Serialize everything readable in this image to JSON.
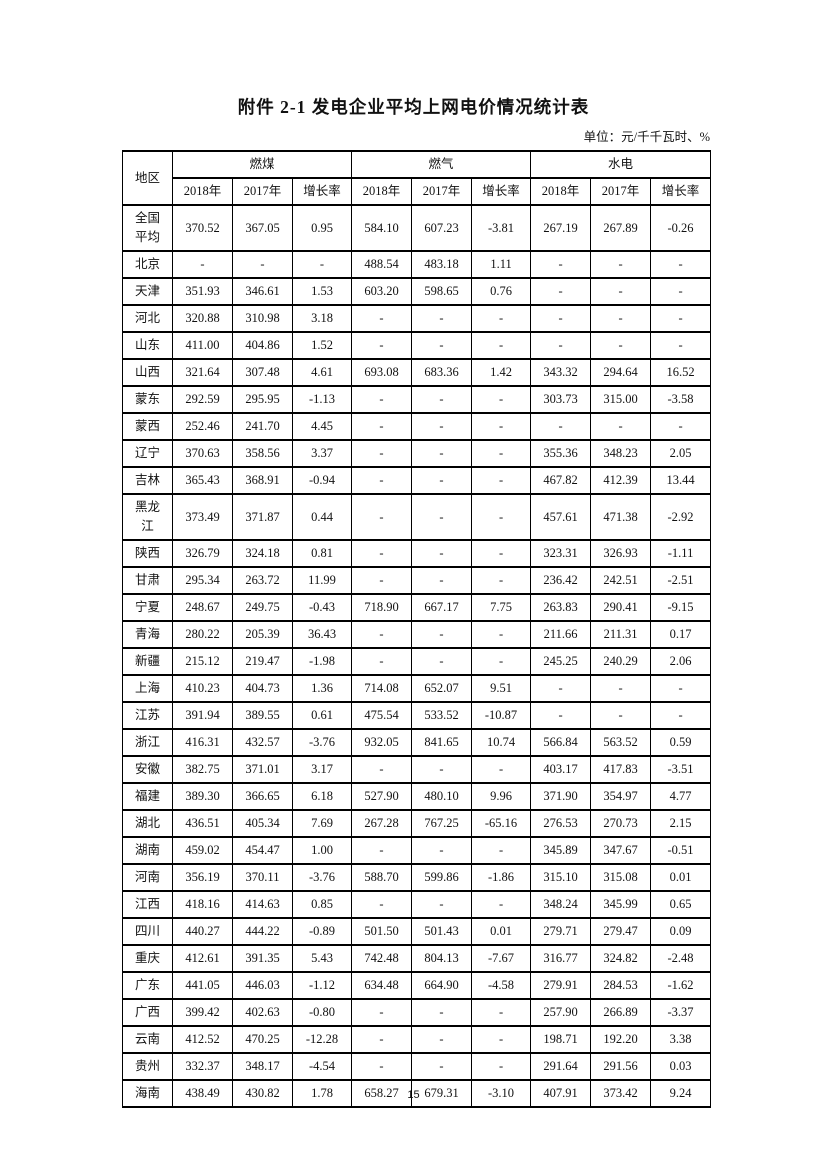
{
  "page": {
    "title": "附件 2-1 发电企业平均上网电价情况统计表",
    "unit_label": "单位：元/千千瓦时、%",
    "page_number": "15"
  },
  "table": {
    "region_header": "地区",
    "groups": [
      {
        "label": "燃煤",
        "columns": [
          "2018年",
          "2017年",
          "增长率"
        ]
      },
      {
        "label": "燃气",
        "columns": [
          "2018年",
          "2017年",
          "增长率"
        ]
      },
      {
        "label": "水电",
        "columns": [
          "2018年",
          "2017年",
          "增长率"
        ]
      }
    ],
    "rows": [
      {
        "region": "全国\n平均",
        "values": [
          "370.52",
          "367.05",
          "0.95",
          "584.10",
          "607.23",
          "-3.81",
          "267.19",
          "267.89",
          "-0.26"
        ]
      },
      {
        "region": "北京",
        "values": [
          "-",
          "-",
          "-",
          "488.54",
          "483.18",
          "1.11",
          "-",
          "-",
          "-"
        ]
      },
      {
        "region": "天津",
        "values": [
          "351.93",
          "346.61",
          "1.53",
          "603.20",
          "598.65",
          "0.76",
          "-",
          "-",
          "-"
        ]
      },
      {
        "region": "河北",
        "values": [
          "320.88",
          "310.98",
          "3.18",
          "-",
          "-",
          "-",
          "-",
          "-",
          "-"
        ]
      },
      {
        "region": "山东",
        "values": [
          "411.00",
          "404.86",
          "1.52",
          "-",
          "-",
          "-",
          "-",
          "-",
          "-"
        ]
      },
      {
        "region": "山西",
        "values": [
          "321.64",
          "307.48",
          "4.61",
          "693.08",
          "683.36",
          "1.42",
          "343.32",
          "294.64",
          "16.52"
        ]
      },
      {
        "region": "蒙东",
        "values": [
          "292.59",
          "295.95",
          "-1.13",
          "-",
          "-",
          "-",
          "303.73",
          "315.00",
          "-3.58"
        ]
      },
      {
        "region": "蒙西",
        "values": [
          "252.46",
          "241.70",
          "4.45",
          "-",
          "-",
          "-",
          "-",
          "-",
          "-"
        ]
      },
      {
        "region": "辽宁",
        "values": [
          "370.63",
          "358.56",
          "3.37",
          "-",
          "-",
          "-",
          "355.36",
          "348.23",
          "2.05"
        ]
      },
      {
        "region": "吉林",
        "values": [
          "365.43",
          "368.91",
          "-0.94",
          "-",
          "-",
          "-",
          "467.82",
          "412.39",
          "13.44"
        ]
      },
      {
        "region": "黑龙\n江",
        "values": [
          "373.49",
          "371.87",
          "0.44",
          "-",
          "-",
          "-",
          "457.61",
          "471.38",
          "-2.92"
        ]
      },
      {
        "region": "陕西",
        "values": [
          "326.79",
          "324.18",
          "0.81",
          "-",
          "-",
          "-",
          "323.31",
          "326.93",
          "-1.11"
        ]
      },
      {
        "region": "甘肃",
        "values": [
          "295.34",
          "263.72",
          "11.99",
          "-",
          "-",
          "-",
          "236.42",
          "242.51",
          "-2.51"
        ]
      },
      {
        "region": "宁夏",
        "values": [
          "248.67",
          "249.75",
          "-0.43",
          "718.90",
          "667.17",
          "7.75",
          "263.83",
          "290.41",
          "-9.15"
        ]
      },
      {
        "region": "青海",
        "values": [
          "280.22",
          "205.39",
          "36.43",
          "-",
          "-",
          "-",
          "211.66",
          "211.31",
          "0.17"
        ]
      },
      {
        "region": "新疆",
        "values": [
          "215.12",
          "219.47",
          "-1.98",
          "-",
          "-",
          "-",
          "245.25",
          "240.29",
          "2.06"
        ]
      },
      {
        "region": "上海",
        "values": [
          "410.23",
          "404.73",
          "1.36",
          "714.08",
          "652.07",
          "9.51",
          "-",
          "-",
          "-"
        ]
      },
      {
        "region": "江苏",
        "values": [
          "391.94",
          "389.55",
          "0.61",
          "475.54",
          "533.52",
          "-10.87",
          "-",
          "-",
          "-"
        ]
      },
      {
        "region": "浙江",
        "values": [
          "416.31",
          "432.57",
          "-3.76",
          "932.05",
          "841.65",
          "10.74",
          "566.84",
          "563.52",
          "0.59"
        ]
      },
      {
        "region": "安徽",
        "values": [
          "382.75",
          "371.01",
          "3.17",
          "-",
          "-",
          "-",
          "403.17",
          "417.83",
          "-3.51"
        ]
      },
      {
        "region": "福建",
        "values": [
          "389.30",
          "366.65",
          "6.18",
          "527.90",
          "480.10",
          "9.96",
          "371.90",
          "354.97",
          "4.77"
        ]
      },
      {
        "region": "湖北",
        "values": [
          "436.51",
          "405.34",
          "7.69",
          "267.28",
          "767.25",
          "-65.16",
          "276.53",
          "270.73",
          "2.15"
        ]
      },
      {
        "region": "湖南",
        "values": [
          "459.02",
          "454.47",
          "1.00",
          "-",
          "-",
          "-",
          "345.89",
          "347.67",
          "-0.51"
        ]
      },
      {
        "region": "河南",
        "values": [
          "356.19",
          "370.11",
          "-3.76",
          "588.70",
          "599.86",
          "-1.86",
          "315.10",
          "315.08",
          "0.01"
        ]
      },
      {
        "region": "江西",
        "values": [
          "418.16",
          "414.63",
          "0.85",
          "-",
          "-",
          "-",
          "348.24",
          "345.99",
          "0.65"
        ]
      },
      {
        "region": "四川",
        "values": [
          "440.27",
          "444.22",
          "-0.89",
          "501.50",
          "501.43",
          "0.01",
          "279.71",
          "279.47",
          "0.09"
        ]
      },
      {
        "region": "重庆",
        "values": [
          "412.61",
          "391.35",
          "5.43",
          "742.48",
          "804.13",
          "-7.67",
          "316.77",
          "324.82",
          "-2.48"
        ]
      },
      {
        "region": "广东",
        "values": [
          "441.05",
          "446.03",
          "-1.12",
          "634.48",
          "664.90",
          "-4.58",
          "279.91",
          "284.53",
          "-1.62"
        ]
      },
      {
        "region": "广西",
        "values": [
          "399.42",
          "402.63",
          "-0.80",
          "-",
          "-",
          "-",
          "257.90",
          "266.89",
          "-3.37"
        ]
      },
      {
        "region": "云南",
        "values": [
          "412.52",
          "470.25",
          "-12.28",
          "-",
          "-",
          "-",
          "198.71",
          "192.20",
          "3.38"
        ]
      },
      {
        "region": "贵州",
        "values": [
          "332.37",
          "348.17",
          "-4.54",
          "-",
          "-",
          "-",
          "291.64",
          "291.56",
          "0.03"
        ]
      },
      {
        "region": "海南",
        "values": [
          "438.49",
          "430.82",
          "1.78",
          "658.27",
          "679.31",
          "-3.10",
          "407.91",
          "373.42",
          "9.24"
        ]
      }
    ]
  }
}
